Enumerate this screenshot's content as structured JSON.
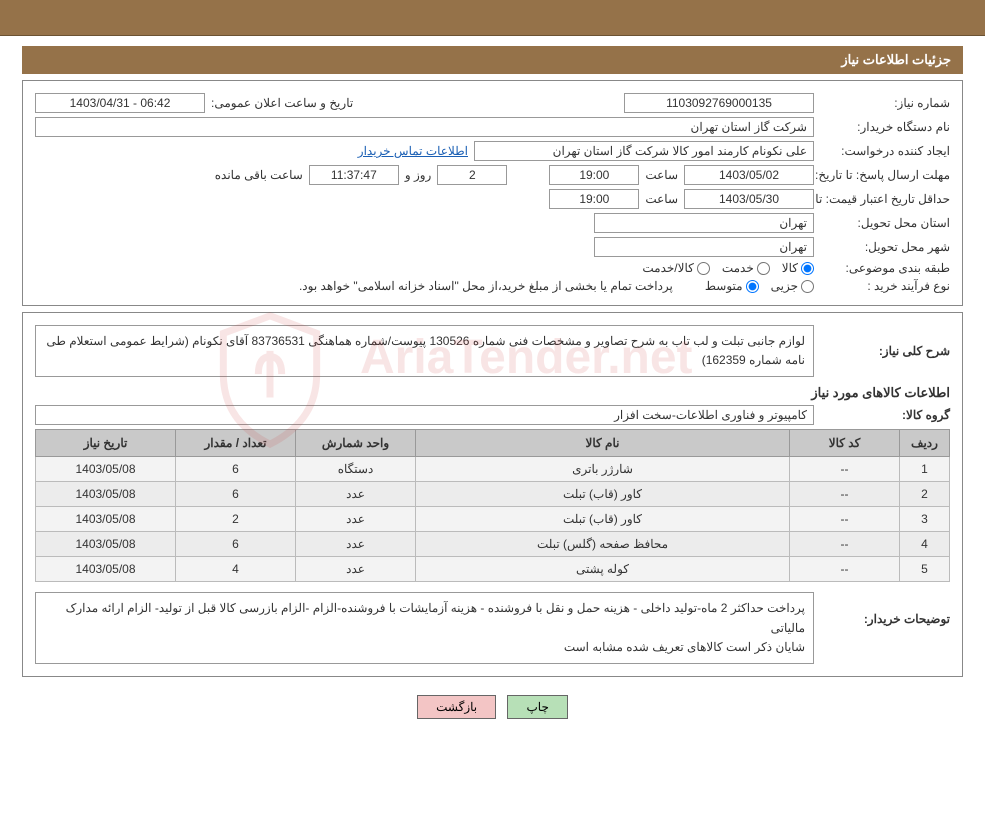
{
  "header": {
    "title": "جزئیات اطلاعات نیاز"
  },
  "fields": {
    "requestNumber": {
      "label": "شماره نیاز:",
      "value": "1103092769000135"
    },
    "announceDateTime": {
      "label": "تاریخ و ساعت اعلان عمومی:",
      "value": "06:42 - 1403/04/31"
    },
    "buyerOrg": {
      "label": "نام دستگاه خریدار:",
      "value": "شرکت گاز استان تهران"
    },
    "requester": {
      "label": "ایجاد کننده درخواست:",
      "value": "علی نکونام کارمند امور کالا شرکت گاز استان تهران"
    },
    "buyerContactLink": "اطلاعات تماس خریدار",
    "responseDeadline": {
      "label": "مهلت ارسال پاسخ: تا تاریخ:",
      "date": "1403/05/02",
      "timeLabel": "ساعت",
      "time": "19:00",
      "daysLabel": "روز و",
      "days": "2",
      "timer": "11:37:47",
      "remainingLabel": "ساعت باقی مانده"
    },
    "priceValidity": {
      "label": "حداقل تاریخ اعتبار قیمت: تا تاریخ:",
      "date": "1403/05/30",
      "timeLabel": "ساعت",
      "time": "19:00"
    },
    "deliveryProvince": {
      "label": "استان محل تحویل:",
      "value": "تهران"
    },
    "deliveryCity": {
      "label": "شهر محل تحویل:",
      "value": "تهران"
    },
    "classification": {
      "label": "طبقه بندی موضوعی:",
      "options": [
        "کالا",
        "خدمت",
        "کالا/خدمت"
      ],
      "selected": 0
    },
    "purchaseType": {
      "label": "نوع فرآیند خرید :",
      "options": [
        "جزیی",
        "متوسط"
      ],
      "selected": 1,
      "note": "پرداخت تمام یا بخشی از مبلغ خرید،از محل \"اسناد خزانه اسلامی\" خواهد بود."
    }
  },
  "generalDesc": {
    "label": "شرح کلی نیاز:",
    "value": "لوازم جانبی تبلت و لب تاب به شرح تصاویر و مشخصات فنی شماره 130526 پیوست/شماره هماهنگی 83736531 آقای نکونام (شرایط عمومی استعلام طی نامه شماره 162359)"
  },
  "itemsHeading": "اطلاعات کالاهای مورد نیاز",
  "itemGroup": {
    "label": "گروه کالا:",
    "value": "کامپیوتر و فناوری اطلاعات-سخت افزار"
  },
  "table": {
    "columns": [
      "ردیف",
      "کد کالا",
      "نام کالا",
      "واحد شمارش",
      "تعداد / مقدار",
      "تاریخ نیاز"
    ],
    "colWidths": [
      "50px",
      "110px",
      "auto",
      "120px",
      "120px",
      "140px"
    ],
    "rows": [
      [
        "1",
        "--",
        "شارژر باتری",
        "دستگاه",
        "6",
        "1403/05/08"
      ],
      [
        "2",
        "--",
        "کاور (قاب) تبلت",
        "عدد",
        "6",
        "1403/05/08"
      ],
      [
        "3",
        "--",
        "کاور (قاب) تبلت",
        "عدد",
        "2",
        "1403/05/08"
      ],
      [
        "4",
        "--",
        "محافظ صفحه (گلس) تبلت",
        "عدد",
        "6",
        "1403/05/08"
      ],
      [
        "5",
        "--",
        "کوله پشتی",
        "عدد",
        "4",
        "1403/05/08"
      ]
    ]
  },
  "buyerNotes": {
    "label": "توضیحات خریدار:",
    "value": "پرداخت حداکثر 2 ماه-تولید داخلی - هزینه حمل و نقل با فروشنده - هزینه آزمایشات با فروشنده-الزام  -الزام بازرسی کالا قبل از تولید- الزام ارائه مدارک مالیاتی\nشایان ذکر است کالاهای تعریف شده مشابه است"
  },
  "buttons": {
    "print": "چاپ",
    "back": "بازگشت"
  },
  "watermark": "AriaTender.net",
  "colors": {
    "headerBg": "#957249",
    "headerText": "#ffffff",
    "border": "#888888",
    "tableHeaderBg": "#c9c9c9",
    "tableRowBg": "#f3f3f3",
    "link": "#1a5fb4",
    "btnPrint": "#b7e0b7",
    "btnBack": "#f3c5c5"
  }
}
